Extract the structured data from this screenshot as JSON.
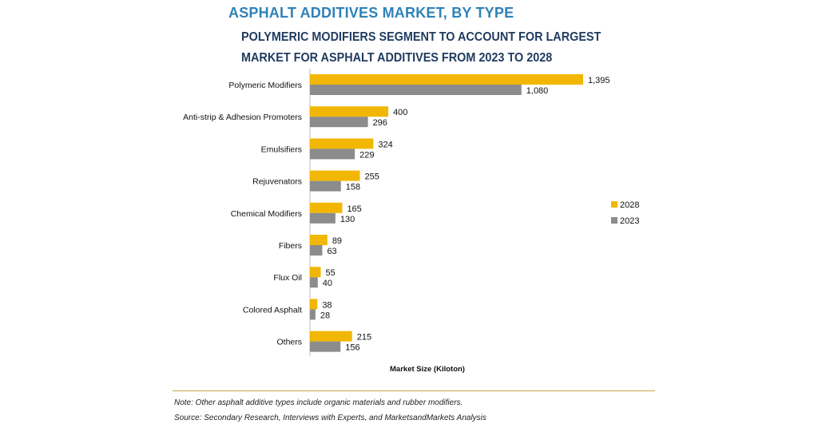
{
  "header": {
    "title": "ASPHALT ADDITIVES MARKET, BY TYPE",
    "subtitle": "POLYMERIC MODIFIERS SEGMENT TO ACCOUNT FOR LARGEST MARKET FOR ASPHALT ADDITIVES FROM 2023 TO 2028"
  },
  "footer": {
    "note": "Note: Other asphalt additive types include organic materials and rubber modifiers.",
    "source": "Source: Secondary Research, Interviews with Experts, and MarketsandMarkets Analysis"
  },
  "chart_data": {
    "type": "bar",
    "orientation": "horizontal",
    "categories": [
      "Polymeric Modifiers",
      "Anti-strip & Adhesion Promoters",
      "Emulsifiers",
      "Rejuvenators",
      "Chemical Modifiers",
      "Fibers",
      "Flux Oil",
      "Colored Asphalt",
      "Others"
    ],
    "series": [
      {
        "name": "2028",
        "color": "#f2b705",
        "values": [
          1395,
          400,
          324,
          255,
          165,
          89,
          55,
          38,
          215
        ],
        "labels": [
          "1,395",
          "400",
          "324",
          "255",
          "165",
          "89",
          "55",
          "38",
          "215"
        ]
      },
      {
        "name": "2023",
        "color": "#8c8c8c",
        "values": [
          1080,
          296,
          229,
          158,
          130,
          63,
          40,
          28,
          156
        ],
        "labels": [
          "1,080",
          "296",
          "229",
          "158",
          "130",
          "63",
          "40",
          "28",
          "156"
        ]
      }
    ],
    "xlabel": "Market Size (Kiloton)",
    "ylabel": "",
    "xlim": [
      0,
      1395
    ],
    "grid": false,
    "legend_position": "right"
  }
}
